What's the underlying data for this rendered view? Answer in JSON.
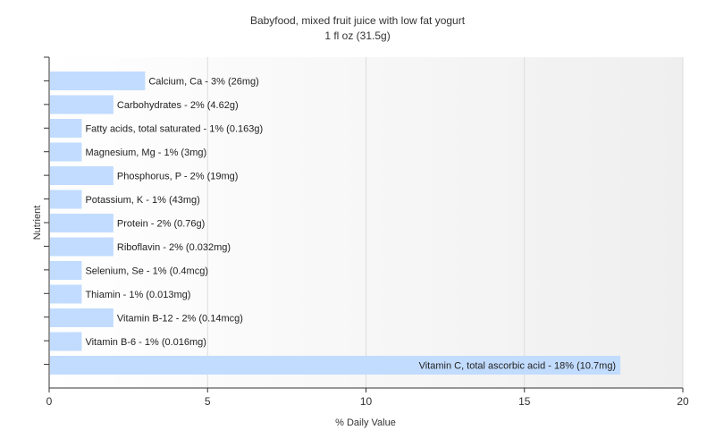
{
  "chart_data": {
    "type": "bar",
    "orientation": "horizontal",
    "title": "Babyfood, mixed fruit juice with low fat yogurt",
    "subtitle": "1 fl oz (31.5g)",
    "xlabel": "% Daily Value",
    "ylabel": "Nutrient",
    "xlim": [
      0,
      20
    ],
    "xticks": [
      0,
      5,
      10,
      15,
      20
    ],
    "grid": true,
    "bar_color": "#c2dcff",
    "categories": [
      "Calcium, Ca",
      "Carbohydrates",
      "Fatty acids, total saturated",
      "Magnesium, Mg",
      "Phosphorus, P",
      "Potassium, K",
      "Protein",
      "Riboflavin",
      "Selenium, Se",
      "Thiamin",
      "Vitamin B-12",
      "Vitamin B-6",
      "Vitamin C, total ascorbic acid"
    ],
    "values": [
      3,
      2,
      1,
      1,
      2,
      1,
      2,
      2,
      1,
      1,
      2,
      1,
      18
    ],
    "labels": [
      "Calcium, Ca - 3% (26mg)",
      "Carbohydrates - 2% (4.62g)",
      "Fatty acids, total saturated - 1% (0.163g)",
      "Magnesium, Mg - 1% (3mg)",
      "Phosphorus, P - 2% (19mg)",
      "Potassium, K - 1% (43mg)",
      "Protein - 2% (0.76g)",
      "Riboflavin - 2% (0.032mg)",
      "Selenium, Se - 1% (0.4mcg)",
      "Thiamin - 1% (0.013mg)",
      "Vitamin B-12 - 2% (0.14mcg)",
      "Vitamin B-6 - 1% (0.016mg)",
      "Vitamin C, total ascorbic acid - 18% (10.7mg)"
    ]
  }
}
